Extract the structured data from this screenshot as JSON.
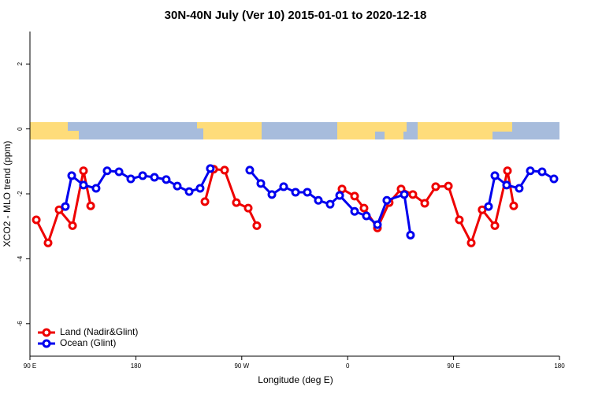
{
  "chart_data": {
    "type": "line",
    "title": "30N-40N July (Ver 10)   2015-01-01 to 2020-12-18",
    "x_label": "Longitude (deg E)",
    "y_label": "XCO2 - MLO trend (ppm)",
    "xlim": [
      90,
      540
    ],
    "ylim": [
      -7,
      3
    ],
    "xticks": [
      {
        "value": 90,
        "label": "90 E"
      },
      180,
      {
        "value": 270,
        "label": "90 W"
      },
      {
        "value": 360,
        "label": "0"
      },
      {
        "value": 450,
        "label": "90 E"
      },
      {
        "value": 540,
        "label": "180"
      }
    ],
    "yticks": [
      -6,
      -4,
      -2,
      0,
      2
    ],
    "legend": "bottom-left",
    "series": [
      {
        "name": "Land (Nadir&Glint)",
        "color": "#ee0000",
        "x": [
          95.4,
          105.4,
          114.8,
          126.2,
          135.5,
          141.6,
          190,
          238.7,
          246.1,
          255.4,
          265.4,
          275.5,
          282.8,
          320,
          355.2,
          365.9,
          373.9,
          385.3,
          395.3,
          405.4,
          415.4,
          425.5,
          434.8,
          445.6,
          454.9,
          465.0,
          474.3,
          485.1,
          495.8,
          501.1
        ],
        "values": [
          -2.8,
          -3.51,
          -2.49,
          -2.98,
          -1.29,
          -2.37,
          null,
          -2.24,
          -1.24,
          -1.27,
          -2.27,
          -2.44,
          -2.98,
          null,
          -1.85,
          -2.07,
          -2.44,
          -3.05,
          -2.27,
          -1.85,
          -2.02,
          -2.29,
          -1.78,
          -1.76,
          -2.8,
          -3.51,
          -2.49,
          -2.98,
          -1.29,
          -2.37
        ]
      },
      {
        "name": "Ocean (Glint)",
        "color": "#0000ee",
        "x": [
          120.1,
          125.5,
          135.5,
          146.2,
          155.6,
          165.7,
          175.7,
          185.8,
          195.8,
          205.8,
          215.2,
          225.3,
          234.6,
          243.3,
          260,
          276.8,
          286.2,
          295.6,
          305.6,
          315.7,
          325.7,
          335.1,
          345.1,
          353.2,
          365.9,
          375.9,
          385.3,
          393.3,
          408.1,
          413.4,
          460,
          479.7,
          485.1,
          495.1,
          505.8,
          515.2,
          525.2,
          535.3
        ],
        "values": [
          -2.39,
          -1.44,
          -1.73,
          -1.83,
          -1.29,
          -1.32,
          -1.54,
          -1.44,
          -1.49,
          -1.56,
          -1.76,
          -1.93,
          -1.83,
          -1.22,
          null,
          -1.27,
          -1.68,
          -2.02,
          -1.78,
          -1.95,
          -1.95,
          -2.2,
          -2.32,
          -2.05,
          -2.54,
          -2.68,
          -2.95,
          -2.2,
          -2.02,
          -3.27,
          null,
          -2.39,
          -1.44,
          -1.73,
          -1.83,
          -1.29,
          -1.32,
          -1.54
        ]
      }
    ]
  }
}
